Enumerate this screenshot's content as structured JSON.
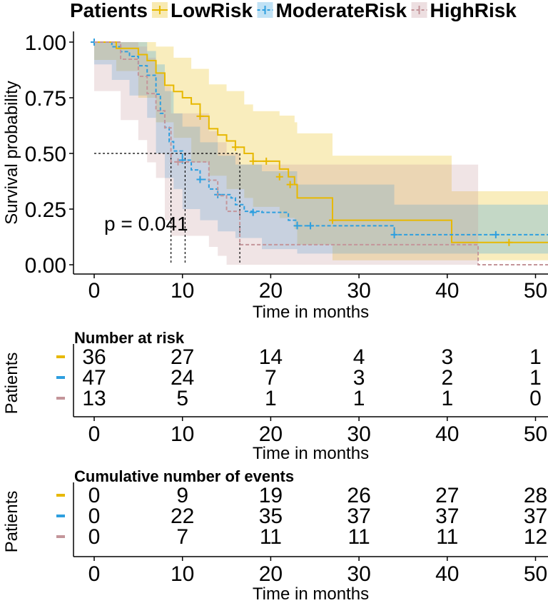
{
  "chart_data": [
    {
      "type": "line",
      "subtype": "kaplan-meier",
      "legend": {
        "title": "Patients",
        "position": "top",
        "entries": [
          "LowRisk",
          "ModerateRisk",
          "HighRisk"
        ]
      },
      "xlabel": "Time in months",
      "ylabel": "Survival probability",
      "xlim": [
        0,
        52
      ],
      "ylim": [
        0,
        1
      ],
      "xticks": [
        "0",
        "10",
        "20",
        "30",
        "40",
        "50"
      ],
      "yticks": [
        "0.00",
        "0.25",
        "0.50",
        "0.75",
        "1.00"
      ],
      "annotation": "p = 0.041",
      "median_reference": {
        "y": 0.5,
        "x": [
          8.7,
          10.3,
          16.5
        ]
      },
      "series": [
        {
          "name": "LowRisk",
          "color": "#E7B800",
          "line": "solid",
          "steps": [
            [
              0,
              1.0
            ],
            [
              2.5,
              0.972
            ],
            [
              5,
              0.944
            ],
            [
              6,
              0.917
            ],
            [
              7,
              0.861
            ],
            [
              8,
              0.806
            ],
            [
              9,
              0.778
            ],
            [
              10,
              0.75
            ],
            [
              11,
              0.722
            ],
            [
              12,
              0.667
            ],
            [
              13,
              0.611
            ],
            [
              14,
              0.583
            ],
            [
              15,
              0.556
            ],
            [
              16,
              0.528
            ],
            [
              17,
              0.5
            ],
            [
              18,
              0.465
            ],
            [
              21,
              0.43
            ],
            [
              22,
              0.395
            ],
            [
              22.7,
              0.36
            ],
            [
              23,
              0.3
            ],
            [
              27,
              0.2
            ],
            [
              40.5,
              0.1
            ],
            [
              52,
              0.1
            ]
          ],
          "censors": [
            [
              12,
              0.667
            ],
            [
              16,
              0.528
            ],
            [
              18,
              0.465
            ],
            [
              19.5,
              0.465
            ],
            [
              21,
              0.395
            ],
            [
              22.2,
              0.36
            ],
            [
              27,
              0.2
            ],
            [
              47,
              0.1
            ]
          ],
          "ci": [
            [
              0,
              1,
              1
            ],
            [
              2.5,
              0.92,
              1
            ],
            [
              5,
              0.87,
              1
            ],
            [
              7,
              0.75,
              0.98
            ],
            [
              9,
              0.64,
              0.93
            ],
            [
              11,
              0.57,
              0.88
            ],
            [
              13,
              0.46,
              0.81
            ],
            [
              15,
              0.4,
              0.78
            ],
            [
              17,
              0.34,
              0.72
            ],
            [
              18,
              0.3,
              0.69
            ],
            [
              21,
              0.26,
              0.67
            ],
            [
              22.7,
              0.21,
              0.64
            ],
            [
              23,
              0.16,
              0.59
            ],
            [
              27,
              0.09,
              0.49
            ],
            [
              40.5,
              0.02,
              0.33
            ],
            [
              52,
              0.02,
              0.33
            ]
          ]
        },
        {
          "name": "ModerateRisk",
          "color": "#2E9FDF",
          "line": "dashed",
          "steps": [
            [
              0,
              1.0
            ],
            [
              2,
              0.979
            ],
            [
              3,
              0.957
            ],
            [
              4,
              0.936
            ],
            [
              5,
              0.894
            ],
            [
              6,
              0.851
            ],
            [
              7,
              0.766
            ],
            [
              7.5,
              0.68
            ],
            [
              8,
              0.617
            ],
            [
              8.5,
              0.553
            ],
            [
              9,
              0.511
            ],
            [
              10,
              0.47
            ],
            [
              11,
              0.426
            ],
            [
              12,
              0.383
            ],
            [
              13,
              0.34
            ],
            [
              14,
              0.315
            ],
            [
              15.5,
              0.3
            ],
            [
              16,
              0.27
            ],
            [
              17,
              0.24
            ],
            [
              19,
              0.235
            ],
            [
              22,
              0.2
            ],
            [
              23,
              0.175
            ],
            [
              34,
              0.135
            ],
            [
              52,
              0.135
            ]
          ],
          "censors": [
            [
              0,
              1.0
            ],
            [
              10,
              0.47
            ],
            [
              12,
              0.383
            ],
            [
              14,
              0.315
            ],
            [
              18,
              0.235
            ],
            [
              23,
              0.175
            ],
            [
              24.5,
              0.175
            ],
            [
              34,
              0.135
            ],
            [
              45.5,
              0.135
            ],
            [
              52,
              0.135
            ]
          ],
          "ci": [
            [
              0,
              1,
              1
            ],
            [
              2,
              0.9,
              1
            ],
            [
              4,
              0.83,
              1
            ],
            [
              6,
              0.76,
              0.96
            ],
            [
              7,
              0.66,
              0.9
            ],
            [
              8,
              0.5,
              0.78
            ],
            [
              9,
              0.39,
              0.68
            ],
            [
              10,
              0.34,
              0.62
            ],
            [
              12,
              0.25,
              0.55
            ],
            [
              14,
              0.2,
              0.49
            ],
            [
              16,
              0.15,
              0.45
            ],
            [
              19,
              0.12,
              0.42
            ],
            [
              23,
              0.07,
              0.36
            ],
            [
              34,
              0.05,
              0.27
            ],
            [
              52,
              0.05,
              0.27
            ]
          ]
        },
        {
          "name": "HighRisk",
          "color": "#C4959A",
          "line": "dashed",
          "steps": [
            [
              0,
              1.0
            ],
            [
              3,
              0.923
            ],
            [
              5,
              0.846
            ],
            [
              6,
              0.769
            ],
            [
              7,
              0.692
            ],
            [
              8,
              0.615
            ],
            [
              8.7,
              0.462
            ],
            [
              10,
              0.462
            ],
            [
              13,
              0.38
            ],
            [
              14,
              0.31
            ],
            [
              15,
              0.24
            ],
            [
              16.5,
              0.09
            ],
            [
              43.5,
              0.0
            ],
            [
              52,
              0.0
            ]
          ],
          "censors": [
            [
              9.5,
              0.462
            ]
          ],
          "ci": [
            [
              0,
              1,
              1
            ],
            [
              3,
              0.78,
              1
            ],
            [
              5,
              0.65,
              0.98
            ],
            [
              6,
              0.56,
              0.93
            ],
            [
              7,
              0.46,
              0.86
            ],
            [
              8,
              0.39,
              0.8
            ],
            [
              8.7,
              0.2,
              0.68
            ],
            [
              13,
              0.13,
              0.6
            ],
            [
              14,
              0.08,
              0.55
            ],
            [
              15,
              0.04,
              0.5
            ],
            [
              16.5,
              0.0,
              0.45
            ],
            [
              43.5,
              0.0,
              0.45
            ]
          ]
        }
      ]
    },
    {
      "type": "table",
      "title": "Number at risk",
      "ylabel": "Patients",
      "xlabel": "Time in months",
      "xticks": [
        "0",
        "10",
        "20",
        "30",
        "40",
        "50"
      ],
      "columns": [
        0,
        10,
        20,
        30,
        40,
        50
      ],
      "rows": [
        {
          "name": "LowRisk",
          "color": "#E7B800",
          "values": [
            "36",
            "27",
            "14",
            "4",
            "3",
            "1"
          ]
        },
        {
          "name": "ModerateRisk",
          "color": "#2E9FDF",
          "values": [
            "47",
            "24",
            "7",
            "3",
            "2",
            "1"
          ]
        },
        {
          "name": "HighRisk",
          "color": "#C4959A",
          "values": [
            "13",
            "5",
            "1",
            "1",
            "1",
            "0"
          ]
        }
      ]
    },
    {
      "type": "table",
      "title": "Cumulative number of events",
      "ylabel": "Patients",
      "xlabel": "Time in months",
      "xticks": [
        "0",
        "10",
        "20",
        "30",
        "40",
        "50"
      ],
      "columns": [
        0,
        10,
        20,
        30,
        40,
        50
      ],
      "rows": [
        {
          "name": "LowRisk",
          "color": "#E7B800",
          "values": [
            "0",
            "9",
            "19",
            "26",
            "27",
            "28"
          ]
        },
        {
          "name": "ModerateRisk",
          "color": "#2E9FDF",
          "values": [
            "0",
            "22",
            "35",
            "37",
            "37",
            "37"
          ]
        },
        {
          "name": "HighRisk",
          "color": "#C4959A",
          "values": [
            "0",
            "7",
            "11",
            "11",
            "11",
            "12"
          ]
        }
      ]
    }
  ]
}
